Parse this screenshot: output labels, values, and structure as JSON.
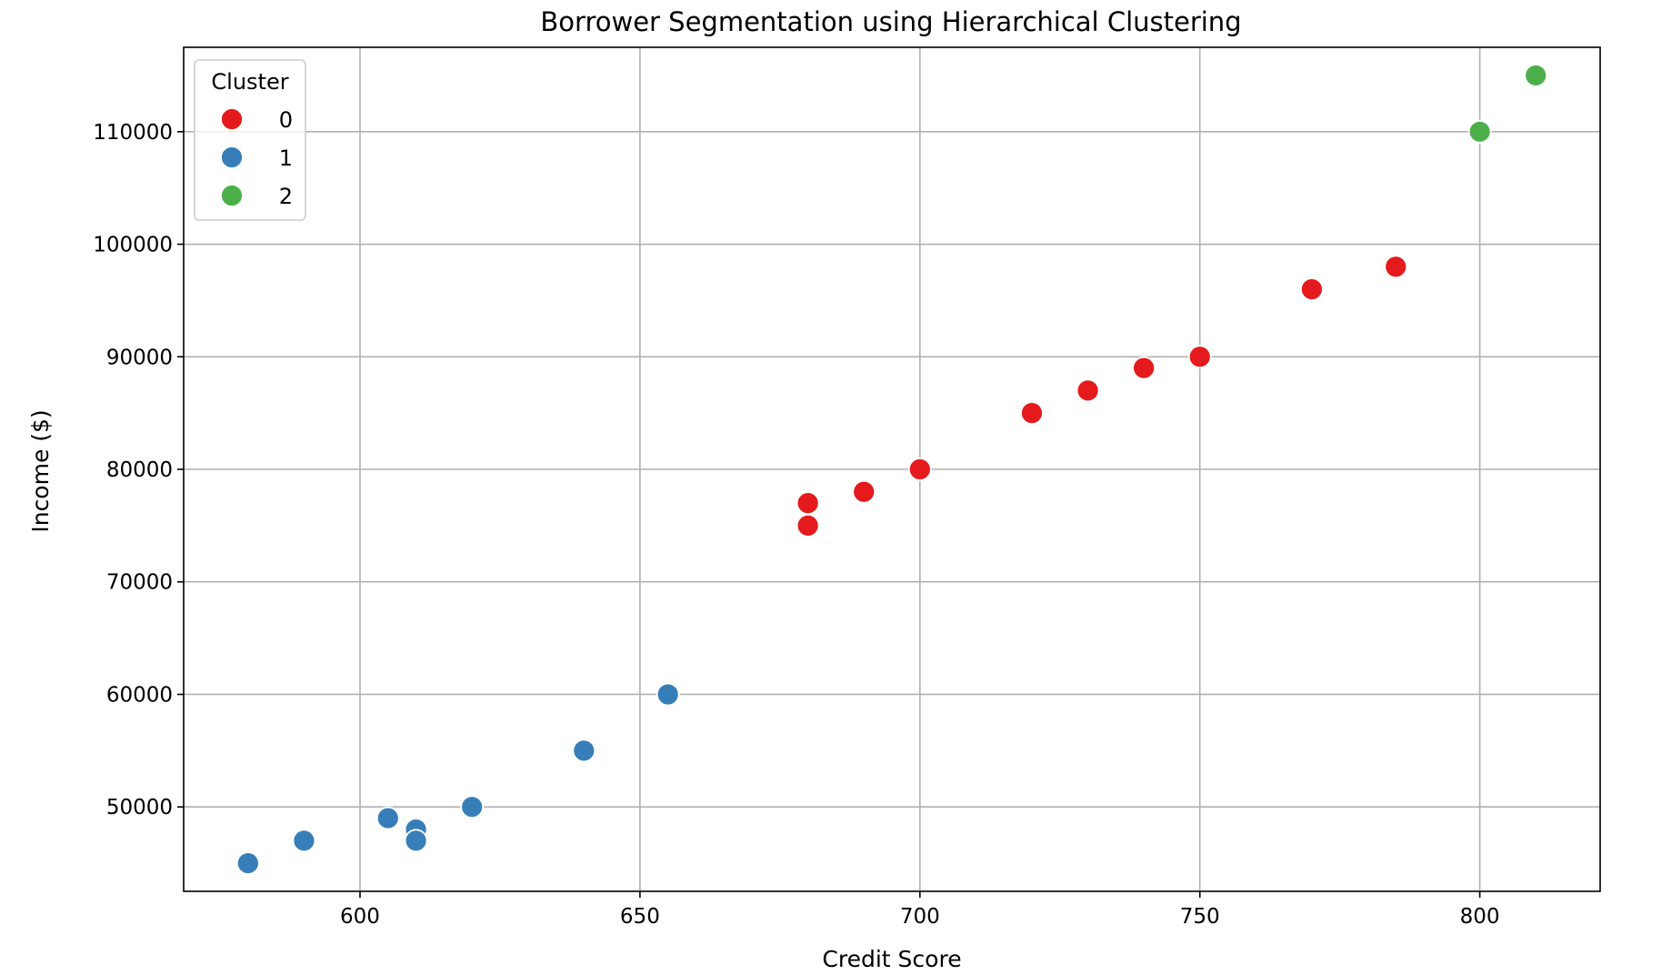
{
  "chart_data": {
    "type": "scatter",
    "title": "Borrower Segmentation using Hierarchical Clustering",
    "xlabel": "Credit Score",
    "ylabel": "Income ($)",
    "xlim": [
      568.5,
      821.5
    ],
    "ylim": [
      42500,
      117500
    ],
    "x_ticks": [
      600,
      650,
      700,
      750,
      800
    ],
    "y_ticks": [
      50000,
      60000,
      70000,
      80000,
      90000,
      100000,
      110000
    ],
    "grid": true,
    "legend": {
      "title": "Cluster",
      "placement": "upper-left",
      "entries": [
        "0",
        "1",
        "2"
      ]
    },
    "series": [
      {
        "name": "0",
        "color": "#e41a1c",
        "points": [
          {
            "x": 680,
            "y": 77000
          },
          {
            "x": 680,
            "y": 75000
          },
          {
            "x": 690,
            "y": 78000
          },
          {
            "x": 700,
            "y": 80000
          },
          {
            "x": 720,
            "y": 85000
          },
          {
            "x": 730,
            "y": 87000
          },
          {
            "x": 740,
            "y": 89000
          },
          {
            "x": 750,
            "y": 90000
          },
          {
            "x": 770,
            "y": 96000
          },
          {
            "x": 785,
            "y": 98000
          }
        ]
      },
      {
        "name": "1",
        "color": "#377eb8",
        "points": [
          {
            "x": 580,
            "y": 45000
          },
          {
            "x": 590,
            "y": 47000
          },
          {
            "x": 605,
            "y": 49000
          },
          {
            "x": 610,
            "y": 48000
          },
          {
            "x": 610,
            "y": 47000
          },
          {
            "x": 620,
            "y": 50000
          },
          {
            "x": 640,
            "y": 55000
          },
          {
            "x": 655,
            "y": 60000
          }
        ]
      },
      {
        "name": "2",
        "color": "#4daf4a",
        "points": [
          {
            "x": 800,
            "y": 110000
          },
          {
            "x": 810,
            "y": 115000
          }
        ]
      }
    ]
  }
}
